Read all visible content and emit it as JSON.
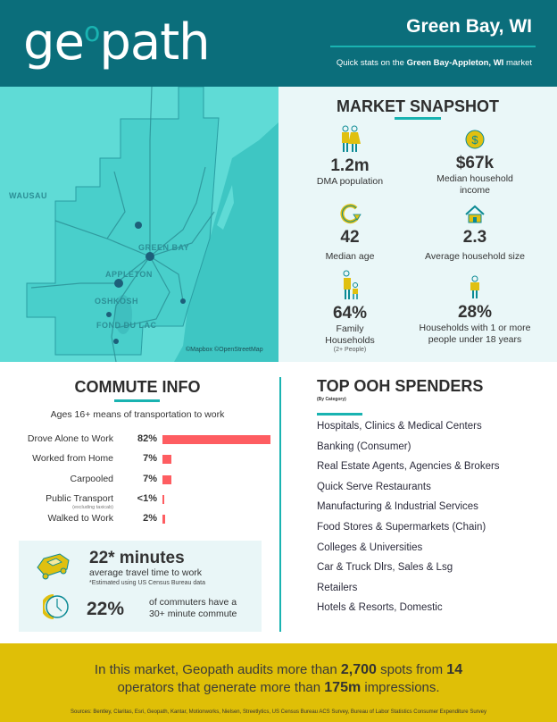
{
  "header": {
    "logo_text": "geopath",
    "city": "Green Bay, WI",
    "subtitle_prefix": "Quick stats on the ",
    "subtitle_market": "Green Bay-Appleton, WI",
    "subtitle_suffix": " market"
  },
  "map": {
    "labels": [
      "WAUSAU",
      "GREEN BAY",
      "APPLETON",
      "OSHKOSH",
      "FOND DU LAC"
    ],
    "attribution": "©Mapbox ©OpenStreetMap"
  },
  "snapshot": {
    "title": "MARKET SNAPSHOT",
    "stats": [
      {
        "icon": "couple-icon",
        "value": "1.2m",
        "label": "DMA population"
      },
      {
        "icon": "dollar-coin-icon",
        "value": "$67k",
        "label": "Median household income"
      },
      {
        "icon": "refresh-arrow-icon",
        "value": "42",
        "label": "Median age"
      },
      {
        "icon": "house-icon",
        "value": "2.3",
        "label": "Average household size"
      },
      {
        "icon": "parent-child-icon",
        "value": "64%",
        "label": "Family Households",
        "note": "(2+ People)"
      },
      {
        "icon": "child-icon",
        "value": "28%",
        "label": "Households with 1 or more people under 18 years"
      }
    ]
  },
  "commute": {
    "title": "COMMUTE INFO",
    "subtitle": "Ages 16+ means of transportation to work",
    "rows": [
      {
        "label": "Drove Alone to Work",
        "pct": "82%",
        "value": 82
      },
      {
        "label": "Worked from Home",
        "pct": "7%",
        "value": 7
      },
      {
        "label": "Carpooled",
        "pct": "7%",
        "value": 7
      },
      {
        "label": "Public Transport",
        "note": "(excluding taxicab)",
        "pct": "<1%",
        "value": 1
      },
      {
        "label": "Walked to Work",
        "pct": "2%",
        "value": 2
      }
    ],
    "bar_color": "#fe5d61",
    "travel_time": "22* minutes",
    "travel_label": "average travel time to work",
    "travel_note": "*Estimated using US Census Bureau data",
    "long_commute_pct": "22%",
    "long_commute_label": "of commuters have a 30+ minute commute"
  },
  "spenders": {
    "title": "TOP OOH SPENDERS",
    "subtitle": "(By Category)",
    "items": [
      "Hospitals, Clinics & Medical Centers",
      "Banking (Consumer)",
      "Real Estate Agents, Agencies & Brokers",
      "Quick Serve Restaurants",
      "Manufacturing & Industrial Services",
      "Food Stores & Supermarkets (Chain)",
      "Colleges & Universities",
      "Car & Truck Dlrs, Sales & Lsg",
      "Retailers",
      "Hotels & Resorts, Domestic"
    ]
  },
  "footer": {
    "t1": "In this market, Geopath audits more than ",
    "spots": "2,700",
    "t2": " spots from ",
    "operators": "14",
    "t3": " operators that generate more than ",
    "impressions": "175m",
    "t4": " impressions.",
    "sources": "Sources: Bentley, Claritas, Esri, Geopath, Kantar, Motionworks, Nielsen, Streetlytics, US Census Bureau ACS Survey, Bureau of Labor Statistics Consumer Expenditure Survey"
  },
  "colors": {
    "header": "#0b6e7b",
    "accent": "#19b3b1",
    "footer": "#dfbf07",
    "icon_yellow": "#e0c010"
  }
}
